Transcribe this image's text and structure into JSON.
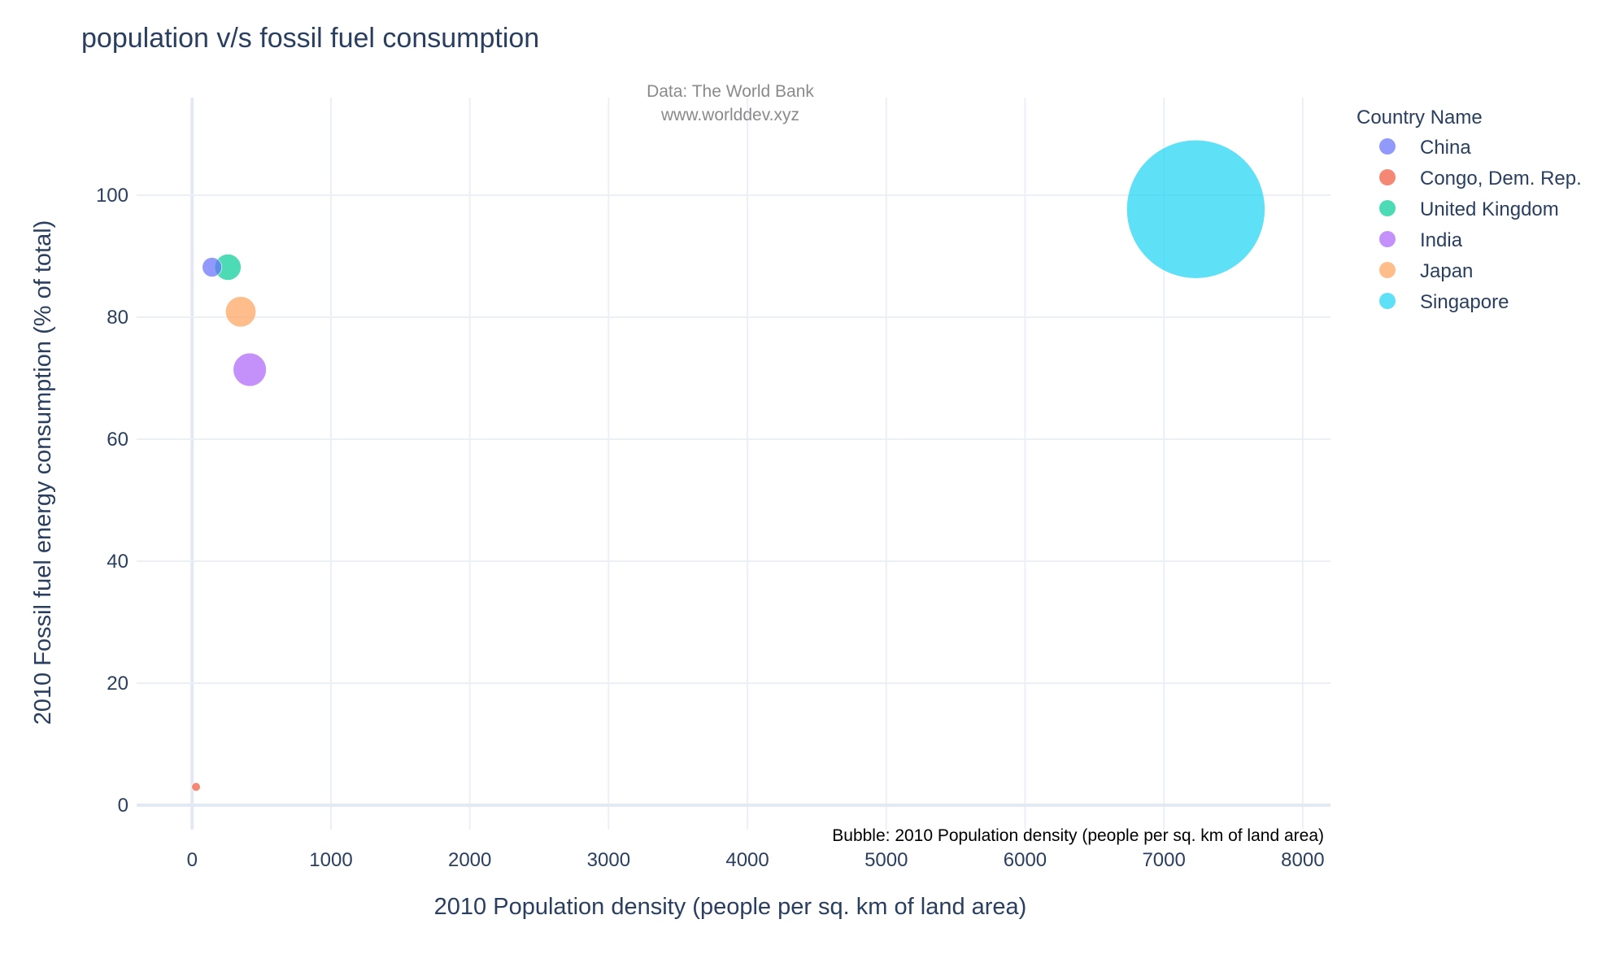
{
  "chart_data": {
    "type": "scatter",
    "title": "population v/s fossil fuel consumption",
    "annotations": {
      "source_line1": "Data: The World Bank",
      "source_line2": "www.worlddev.xyz",
      "bubble_note": "Bubble: 2010 Population density (people per sq. km of land area)"
    },
    "xlabel": "2010 Population density (people per sq. km of land area)",
    "ylabel": "2010 Fossil fuel energy consumption (% of total)",
    "xlim": [
      -400,
      8200
    ],
    "ylim": [
      -4,
      116
    ],
    "xticks": [
      0,
      1000,
      2000,
      3000,
      4000,
      5000,
      6000,
      7000,
      8000
    ],
    "xtick_labels": [
      "0",
      "1000",
      "2000",
      "3000",
      "4000",
      "5000",
      "6000",
      "7000",
      "8000"
    ],
    "yticks": [
      0,
      20,
      40,
      60,
      80,
      100
    ],
    "ytick_labels": [
      "0",
      "20",
      "40",
      "60",
      "80",
      "100"
    ],
    "grid": true,
    "legend_title": "Country Name",
    "legend_position": "top-right",
    "size_variable": "2010 Population density (people per sq. km of land area)",
    "series": [
      {
        "name": "China",
        "color": "#636efa",
        "x": 143,
        "y": 88.2,
        "size": 143
      },
      {
        "name": "Congo, Dem. Rep.",
        "color": "#ef553b",
        "x": 28,
        "y": 3.0,
        "size": 28
      },
      {
        "name": "United Kingdom",
        "color": "#00cc96",
        "x": 258,
        "y": 88.2,
        "size": 258
      },
      {
        "name": "India",
        "color": "#ab63fa",
        "x": 415,
        "y": 71.4,
        "size": 415
      },
      {
        "name": "Japan",
        "color": "#ffa15a",
        "x": 350,
        "y": 80.9,
        "size": 350
      },
      {
        "name": "Singapore",
        "color": "#19d3f3",
        "x": 7230,
        "y": 97.7,
        "size": 7230
      }
    ]
  }
}
